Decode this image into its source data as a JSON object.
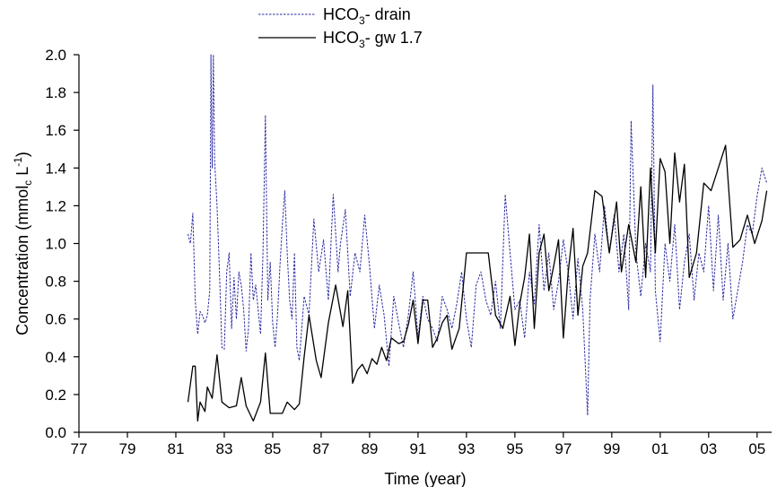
{
  "chart_data": {
    "type": "line",
    "xlabel": "Time (year)",
    "ylabel": {
      "prefix": "Concentration (mmol",
      "sub": "c",
      "mid": " L",
      "sup": "-1",
      "suffix": ")"
    },
    "xlim": [
      1977,
      2005.6
    ],
    "ylim": [
      0,
      2.0
    ],
    "x_ticks": [
      {
        "value": 1977,
        "label": "77"
      },
      {
        "value": 1979,
        "label": "79"
      },
      {
        "value": 1981,
        "label": "81"
      },
      {
        "value": 1983,
        "label": "83"
      },
      {
        "value": 1985,
        "label": "85"
      },
      {
        "value": 1987,
        "label": "87"
      },
      {
        "value": 1989,
        "label": "89"
      },
      {
        "value": 1991,
        "label": "91"
      },
      {
        "value": 1993,
        "label": "93"
      },
      {
        "value": 1995,
        "label": "95"
      },
      {
        "value": 1997,
        "label": "97"
      },
      {
        "value": 1999,
        "label": "99"
      },
      {
        "value": 2001,
        "label": "01"
      },
      {
        "value": 2003,
        "label": "03"
      },
      {
        "value": 2005,
        "label": "05"
      }
    ],
    "y_ticks": [
      {
        "value": 0.0,
        "label": "0.0"
      },
      {
        "value": 0.2,
        "label": "0.2"
      },
      {
        "value": 0.4,
        "label": "0.4"
      },
      {
        "value": 0.6,
        "label": "0.6"
      },
      {
        "value": 0.8,
        "label": "0.8"
      },
      {
        "value": 1.0,
        "label": "1.0"
      },
      {
        "value": 1.2,
        "label": "1.2"
      },
      {
        "value": 1.4,
        "label": "1.4"
      },
      {
        "value": 1.6,
        "label": "1.6"
      },
      {
        "value": 1.8,
        "label": "1.8"
      },
      {
        "value": 2.0,
        "label": "2.0"
      }
    ],
    "grid": false,
    "legend_position": "top-center",
    "series": [
      {
        "name_main": "HCO",
        "name_sub": "3",
        "name_suffix": "-  drain",
        "color": "#2a2aa0",
        "style": "dashed",
        "x": [
          1981.5,
          1981.6,
          1981.7,
          1981.8,
          1981.9,
          1982.0,
          1982.1,
          1982.2,
          1982.3,
          1982.4,
          1982.45,
          1982.5,
          1982.55,
          1982.6,
          1982.7,
          1982.8,
          1982.9,
          1983.0,
          1983.1,
          1983.2,
          1983.3,
          1983.4,
          1983.5,
          1983.6,
          1983.7,
          1983.8,
          1983.9,
          1984.0,
          1984.1,
          1984.2,
          1984.3,
          1984.4,
          1984.5,
          1984.6,
          1984.7,
          1984.8,
          1984.9,
          1985.0,
          1985.1,
          1985.2,
          1985.3,
          1985.4,
          1985.5,
          1985.6,
          1985.7,
          1985.8,
          1985.9,
          1986.0,
          1986.1,
          1986.2,
          1986.3,
          1986.5,
          1986.7,
          1986.9,
          1987.1,
          1987.3,
          1987.5,
          1987.7,
          1987.8,
          1988.0,
          1988.2,
          1988.4,
          1988.6,
          1988.8,
          1989.0,
          1989.2,
          1989.4,
          1989.6,
          1989.8,
          1990.0,
          1990.2,
          1990.4,
          1990.6,
          1990.8,
          1991.0,
          1991.2,
          1991.4,
          1991.6,
          1991.8,
          1992.0,
          1992.2,
          1992.4,
          1992.6,
          1992.8,
          1993.0,
          1993.2,
          1993.4,
          1993.6,
          1993.8,
          1994.0,
          1994.2,
          1994.4,
          1994.6,
          1994.8,
          1995.0,
          1995.2,
          1995.4,
          1995.6,
          1995.8,
          1996.0,
          1996.2,
          1996.4,
          1996.6,
          1996.8,
          1997.0,
          1997.2,
          1997.4,
          1997.6,
          1997.8,
          1998.0,
          1998.1,
          1998.3,
          1998.5,
          1998.7,
          1998.9,
          1999.1,
          1999.3,
          1999.5,
          1999.7,
          1999.8,
          2000.0,
          2000.2,
          2000.4,
          2000.6,
          2000.7,
          2000.8,
          2001.0,
          2001.2,
          2001.4,
          2001.6,
          2001.8,
          2002.0,
          2002.2,
          2002.4,
          2002.6,
          2002.8,
          2003.0,
          2003.2,
          2003.4,
          2003.6,
          2003.8,
          2004.0,
          2004.2,
          2004.4,
          2004.6,
          2004.8,
          2005.0,
          2005.2,
          2005.4
        ],
        "y": [
          1.05,
          1.0,
          1.16,
          0.7,
          0.52,
          0.64,
          0.62,
          0.58,
          0.62,
          0.75,
          2.0,
          1.4,
          2.0,
          1.44,
          1.2,
          0.85,
          0.45,
          0.44,
          0.85,
          0.95,
          0.55,
          0.82,
          0.6,
          0.85,
          0.78,
          0.65,
          0.43,
          0.55,
          0.95,
          0.7,
          0.78,
          0.65,
          0.52,
          0.95,
          1.68,
          0.7,
          0.9,
          0.58,
          0.45,
          0.62,
          0.88,
          1.1,
          1.28,
          0.95,
          0.7,
          0.6,
          0.95,
          0.45,
          0.38,
          0.55,
          0.72,
          0.62,
          1.13,
          0.85,
          1.02,
          0.7,
          1.26,
          0.85,
          1.0,
          1.18,
          0.72,
          0.95,
          0.85,
          1.15,
          0.88,
          0.55,
          0.78,
          0.62,
          0.35,
          0.72,
          0.58,
          0.45,
          0.62,
          0.85,
          0.5,
          0.72,
          0.6,
          0.55,
          0.48,
          0.72,
          0.65,
          0.55,
          0.68,
          0.85,
          0.6,
          0.45,
          0.78,
          0.85,
          0.7,
          0.62,
          0.8,
          0.55,
          1.26,
          0.95,
          0.65,
          0.7,
          0.5,
          0.85,
          0.68,
          1.1,
          0.75,
          0.95,
          0.65,
          0.8,
          1.02,
          0.85,
          0.6,
          0.92,
          0.65,
          0.09,
          0.7,
          1.05,
          0.85,
          1.2,
          0.95,
          1.15,
          0.85,
          1.05,
          0.65,
          1.65,
          0.95,
          0.72,
          1.0,
          0.85,
          1.84,
          0.75,
          0.48,
          1.0,
          0.8,
          1.1,
          0.65,
          0.9,
          1.05,
          0.7,
          0.95,
          0.85,
          1.2,
          0.75,
          1.15,
          0.7,
          1.0,
          0.6,
          0.75,
          0.9,
          1.1,
          1.05,
          1.25,
          1.4,
          1.32
        ]
      },
      {
        "name_main": "HCO",
        "name_sub": "3",
        "name_suffix": "-  gw 1.7",
        "color": "#000000",
        "style": "solid",
        "x": [
          1981.5,
          1981.7,
          1981.8,
          1981.9,
          1982.0,
          1982.2,
          1982.3,
          1982.5,
          1982.7,
          1982.9,
          1983.2,
          1983.5,
          1983.7,
          1983.9,
          1984.2,
          1984.5,
          1984.7,
          1984.9,
          1985.2,
          1985.4,
          1985.6,
          1985.9,
          1986.1,
          1986.3,
          1986.5,
          1986.8,
          1987.0,
          1987.3,
          1987.6,
          1987.9,
          1988.1,
          1988.3,
          1988.5,
          1988.7,
          1988.9,
          1989.1,
          1989.3,
          1989.5,
          1989.7,
          1989.9,
          1990.2,
          1990.4,
          1990.6,
          1990.8,
          1991.0,
          1991.2,
          1991.4,
          1991.6,
          1991.8,
          1992.0,
          1992.2,
          1992.4,
          1992.7,
          1993.0,
          1993.3,
          1993.6,
          1993.9,
          1994.2,
          1994.5,
          1994.8,
          1995.0,
          1995.2,
          1995.4,
          1995.6,
          1995.8,
          1996.0,
          1996.2,
          1996.4,
          1996.6,
          1996.8,
          1997.0,
          1997.2,
          1997.4,
          1997.6,
          1997.8,
          1998.0,
          1998.3,
          1998.6,
          1998.9,
          1999.2,
          1999.4,
          1999.7,
          2000.0,
          2000.2,
          2000.4,
          2000.6,
          2000.8,
          2001.0,
          2001.2,
          2001.4,
          2001.6,
          2001.8,
          2002.0,
          2002.2,
          2002.5,
          2002.8,
          2003.1,
          2003.4,
          2003.7,
          2004.0,
          2004.3,
          2004.6,
          2004.9,
          2005.2,
          2005.4
        ],
        "y": [
          0.16,
          0.35,
          0.35,
          0.06,
          0.16,
          0.11,
          0.24,
          0.18,
          0.41,
          0.16,
          0.13,
          0.14,
          0.29,
          0.14,
          0.06,
          0.16,
          0.42,
          0.1,
          0.1,
          0.1,
          0.16,
          0.12,
          0.15,
          0.4,
          0.62,
          0.38,
          0.29,
          0.58,
          0.78,
          0.56,
          0.75,
          0.26,
          0.33,
          0.36,
          0.31,
          0.39,
          0.36,
          0.45,
          0.38,
          0.5,
          0.47,
          0.48,
          0.57,
          0.7,
          0.47,
          0.7,
          0.7,
          0.45,
          0.5,
          0.58,
          0.62,
          0.44,
          0.55,
          0.95,
          0.95,
          0.95,
          0.95,
          0.62,
          0.55,
          0.72,
          0.46,
          0.68,
          0.82,
          1.05,
          0.55,
          0.95,
          1.05,
          0.75,
          0.88,
          1.02,
          0.5,
          0.85,
          1.08,
          0.62,
          0.88,
          0.95,
          1.28,
          1.25,
          0.95,
          1.22,
          0.85,
          1.1,
          0.9,
          1.3,
          0.82,
          1.4,
          0.95,
          1.45,
          1.38,
          1.0,
          1.48,
          1.22,
          1.42,
          0.82,
          0.95,
          1.32,
          1.28,
          1.4,
          1.52,
          0.98,
          1.02,
          1.15,
          1.0,
          1.12,
          1.28
        ]
      }
    ]
  }
}
